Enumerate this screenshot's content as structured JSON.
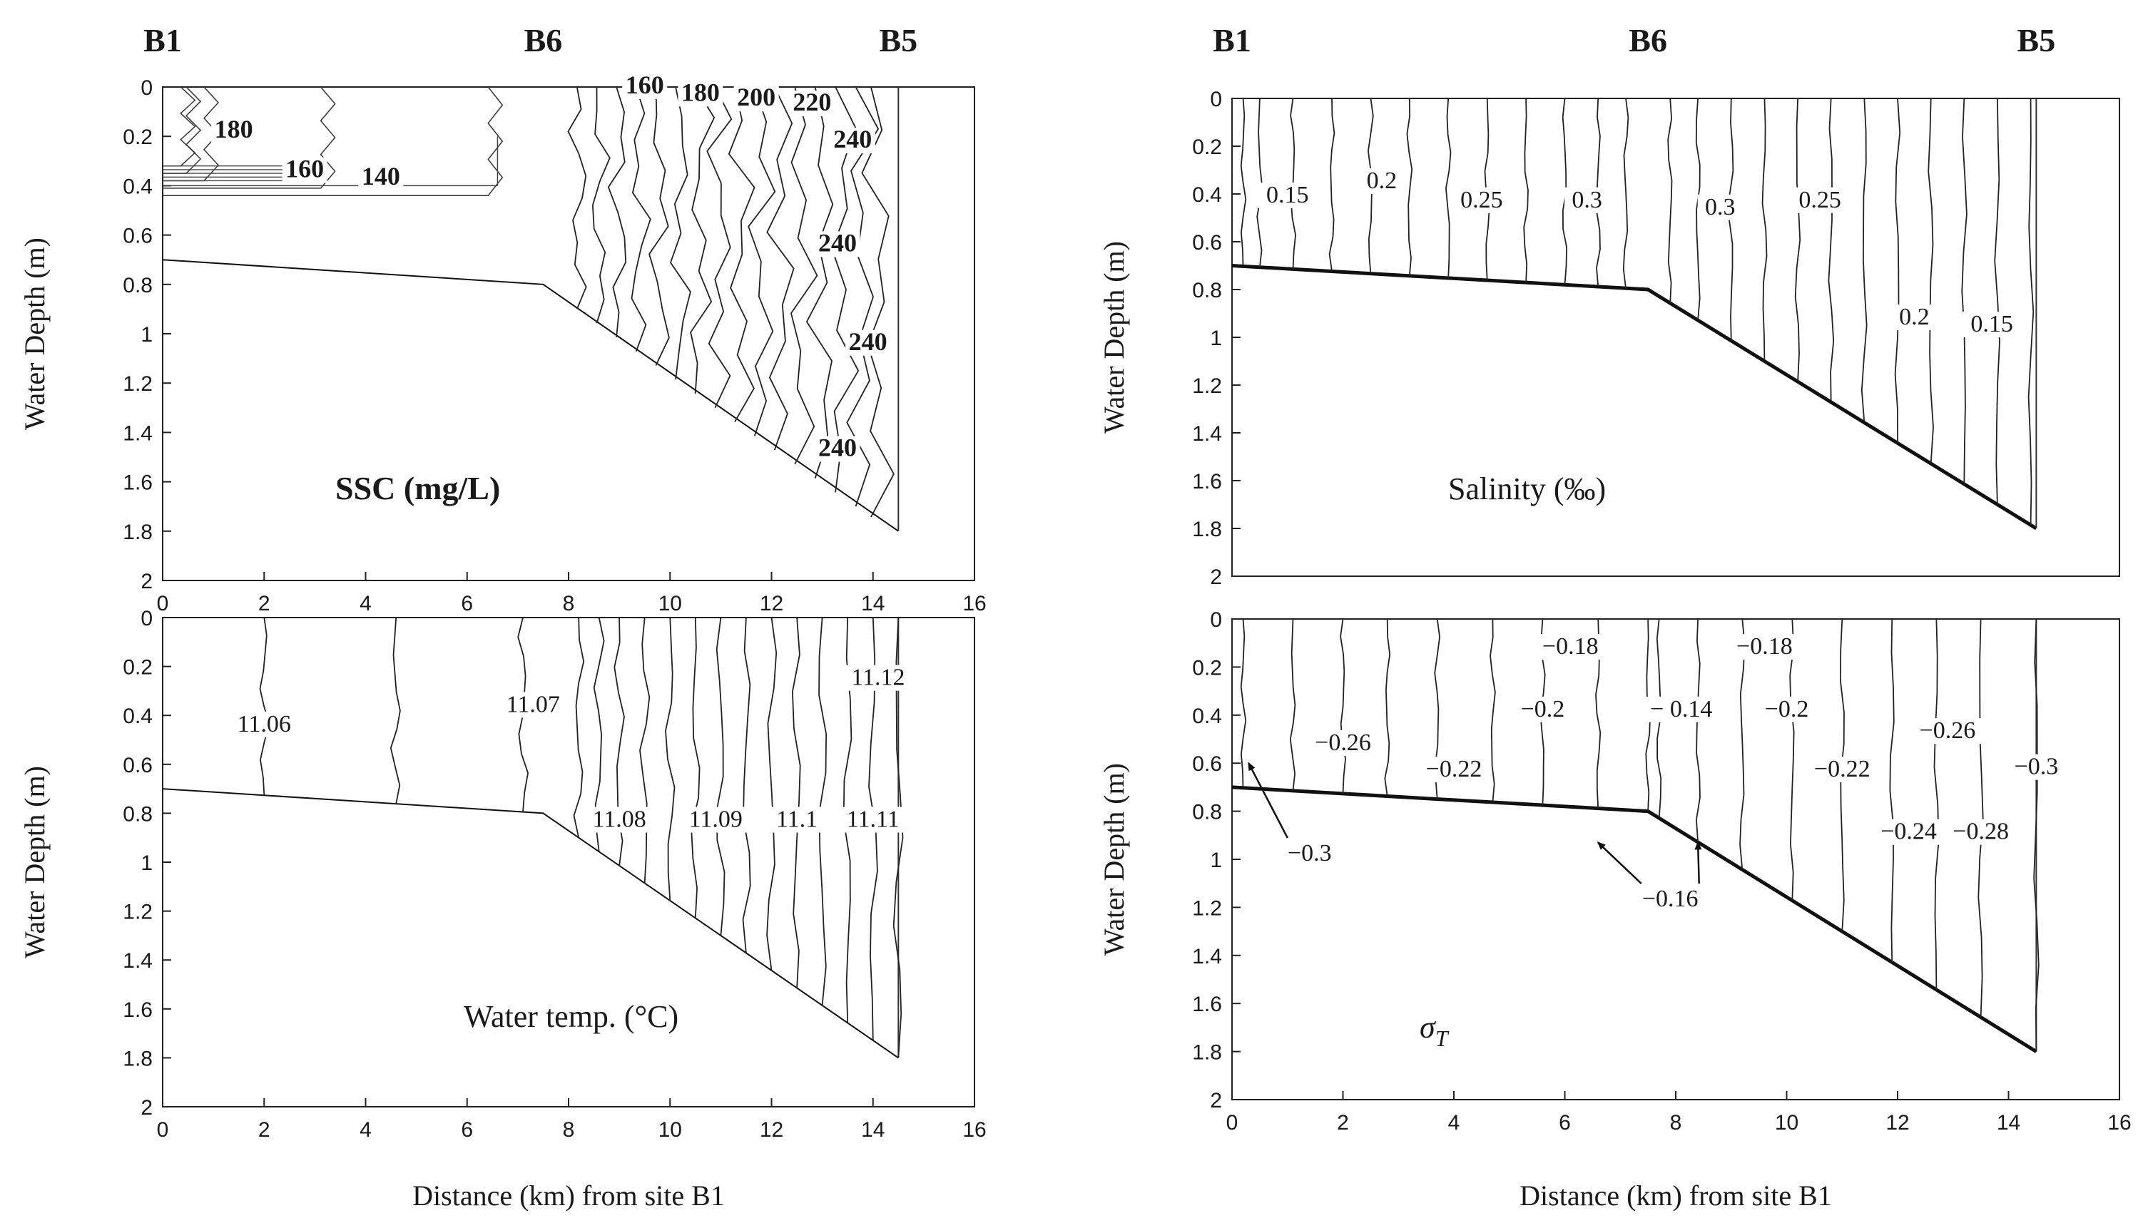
{
  "chart_data": [
    {
      "id": "ssc",
      "type": "contour",
      "panel_label": "SSC (mg/L)",
      "stations": [
        {
          "name": "B1",
          "x_km": 0
        },
        {
          "name": "B6",
          "x_km": 7.5
        },
        {
          "name": "B5",
          "x_km": 14.5
        }
      ],
      "xlabel": "",
      "ylabel": "Water Depth (m)",
      "xlim": [
        0,
        16
      ],
      "ylim": [
        0,
        2
      ],
      "y_inverted": true,
      "x_ticks": [
        "0",
        "2",
        "4",
        "6",
        "8",
        "10",
        "12",
        "14",
        "16"
      ],
      "y_ticks": [
        "0",
        "0.2",
        "0.4",
        "0.6",
        "0.8",
        "1",
        "1.2",
        "1.4",
        "1.6",
        "1.8",
        "2"
      ],
      "bed_profile": [
        [
          0,
          0.7
        ],
        [
          7.5,
          0.8
        ],
        [
          14.5,
          1.8
        ]
      ],
      "contour_x_km": [
        0.3,
        0.55,
        0.9,
        3.2,
        6.5,
        8.2,
        8.6,
        9.0,
        9.4,
        9.8,
        10.2,
        10.6,
        11.0,
        11.4,
        11.8,
        12.2,
        12.6,
        13.0,
        13.4,
        13.8,
        14.1
      ],
      "contour_labels": [
        {
          "text": "180",
          "x_km": 1.4,
          "depth_m": 0.2,
          "style": "bold"
        },
        {
          "text": "160",
          "x_km": 2.8,
          "depth_m": 0.36,
          "style": "bold"
        },
        {
          "text": "140",
          "x_km": 4.3,
          "depth_m": 0.39,
          "style": "bold"
        },
        {
          "text": "160",
          "x_km": 9.5,
          "depth_m": 0.02,
          "style": "bold"
        },
        {
          "text": "180",
          "x_km": 10.6,
          "depth_m": 0.05,
          "style": "bold"
        },
        {
          "text": "200",
          "x_km": 11.7,
          "depth_m": 0.07,
          "style": "bold"
        },
        {
          "text": "220",
          "x_km": 12.8,
          "depth_m": 0.09,
          "style": "bold"
        },
        {
          "text": "240",
          "x_km": 13.6,
          "depth_m": 0.24,
          "style": "bold"
        },
        {
          "text": "240",
          "x_km": 13.3,
          "depth_m": 0.66,
          "style": "bold"
        },
        {
          "text": "240",
          "x_km": 13.9,
          "depth_m": 1.06,
          "style": "bold"
        },
        {
          "text": "240",
          "x_km": 13.3,
          "depth_m": 1.49,
          "style": "bold"
        }
      ]
    },
    {
      "id": "salinity",
      "type": "contour",
      "panel_label": "Salinity (‰)",
      "stations": [
        {
          "name": "B1",
          "x_km": 0
        },
        {
          "name": "B6",
          "x_km": 7.5
        },
        {
          "name": "B5",
          "x_km": 14.5
        }
      ],
      "xlabel": "",
      "ylabel": "Water Depth (m)",
      "xlim": [
        0,
        16
      ],
      "ylim": [
        0,
        2
      ],
      "y_inverted": true,
      "x_ticks": [],
      "y_ticks": [
        "0",
        "0.2",
        "0.4",
        "0.6",
        "0.8",
        "1",
        "1.2",
        "1.4",
        "1.6",
        "1.8",
        "2"
      ],
      "bed_profile": [
        [
          0,
          0.7
        ],
        [
          7.5,
          0.8
        ],
        [
          14.5,
          1.8
        ]
      ],
      "contour_x_km": [
        0.2,
        0.5,
        1.1,
        1.8,
        2.5,
        3.2,
        3.9,
        4.6,
        5.3,
        6.0,
        6.6,
        7.1,
        7.9,
        8.4,
        9.0,
        9.6,
        10.2,
        10.8,
        11.4,
        12.0,
        12.6,
        13.2,
        13.8,
        14.4
      ],
      "contour_labels": [
        {
          "text": "0.15",
          "x_km": 1.0,
          "depth_m": 0.43,
          "style": "normal"
        },
        {
          "text": "0.2",
          "x_km": 2.7,
          "depth_m": 0.37,
          "style": "normal"
        },
        {
          "text": "0.25",
          "x_km": 4.5,
          "depth_m": 0.45,
          "style": "normal"
        },
        {
          "text": "0.3",
          "x_km": 6.4,
          "depth_m": 0.45,
          "style": "normal"
        },
        {
          "text": "0.3",
          "x_km": 8.8,
          "depth_m": 0.48,
          "style": "normal"
        },
        {
          "text": "0.25",
          "x_km": 10.6,
          "depth_m": 0.45,
          "style": "normal"
        },
        {
          "text": "0.2",
          "x_km": 12.3,
          "depth_m": 0.94,
          "style": "normal"
        },
        {
          "text": "0.15",
          "x_km": 13.7,
          "depth_m": 0.97,
          "style": "normal"
        }
      ]
    },
    {
      "id": "temperature",
      "type": "contour",
      "panel_label": "Water temp. (°C)",
      "xlabel": "Distance (km) from site B1",
      "ylabel": "Water Depth (m)",
      "xlim": [
        0,
        16
      ],
      "ylim": [
        0,
        2
      ],
      "y_inverted": true,
      "x_ticks": [
        "0",
        "2",
        "4",
        "6",
        "8",
        "10",
        "12",
        "14",
        "16"
      ],
      "y_ticks": [
        "0",
        "0.2",
        "0.4",
        "0.6",
        "0.8",
        "1",
        "1.2",
        "1.4",
        "1.6",
        "1.8",
        "2"
      ],
      "bed_profile": [
        [
          0,
          0.7
        ],
        [
          7.5,
          0.8
        ],
        [
          14.5,
          1.8
        ]
      ],
      "contour_x_km": [
        2.0,
        4.6,
        7.1,
        8.2,
        8.6,
        9.0,
        9.5,
        10.0,
        10.5,
        11.0,
        11.5,
        12.0,
        12.5,
        13.0,
        13.5,
        14.0,
        14.5
      ],
      "contour_labels": [
        {
          "text": "11.06",
          "x_km": 2.0,
          "depth_m": 0.46,
          "style": "normal"
        },
        {
          "text": "11.07",
          "x_km": 7.3,
          "depth_m": 0.38,
          "style": "normal"
        },
        {
          "text": "11.08",
          "x_km": 9.0,
          "depth_m": 0.85,
          "style": "normal"
        },
        {
          "text": "11.09",
          "x_km": 10.9,
          "depth_m": 0.85,
          "style": "normal"
        },
        {
          "text": "11.1",
          "x_km": 12.5,
          "depth_m": 0.85,
          "style": "normal"
        },
        {
          "text": "11.11",
          "x_km": 14.0,
          "depth_m": 0.85,
          "style": "normal"
        },
        {
          "text": "11.12",
          "x_km": 14.1,
          "depth_m": 0.27,
          "style": "normal"
        }
      ]
    },
    {
      "id": "sigma_t",
      "type": "contour",
      "panel_label": "σ",
      "panel_label_subscript": "T",
      "xlabel": "Distance (km) from site B1",
      "ylabel": "Water Depth (m)",
      "xlim": [
        0,
        16
      ],
      "ylim": [
        0,
        2
      ],
      "y_inverted": true,
      "x_ticks": [
        "0",
        "2",
        "4",
        "6",
        "8",
        "10",
        "12",
        "14",
        "16"
      ],
      "y_ticks": [
        "0",
        "0.2",
        "0.4",
        "0.6",
        "0.8",
        "1",
        "1.2",
        "1.4",
        "1.6",
        "1.8",
        "2"
      ],
      "bed_profile": [
        [
          0,
          0.7
        ],
        [
          7.5,
          0.8
        ],
        [
          14.5,
          1.8
        ]
      ],
      "contour_x_km": [
        0.2,
        1.1,
        2.0,
        2.8,
        3.7,
        4.7,
        5.6,
        6.6,
        7.5,
        7.7,
        8.4,
        9.2,
        10.1,
        11.0,
        11.9,
        12.7,
        13.5,
        14.5
      ],
      "contour_labels": [
        {
          "text": "−0.26",
          "x_km": 2.0,
          "depth_m": 0.54,
          "style": "normal"
        },
        {
          "text": "−0.22",
          "x_km": 4.0,
          "depth_m": 0.65,
          "style": "normal"
        },
        {
          "text": "−0.18",
          "x_km": 6.1,
          "depth_m": 0.14,
          "style": "normal"
        },
        {
          "text": "−0.2",
          "x_km": 5.6,
          "depth_m": 0.4,
          "style": "normal"
        },
        {
          "text": "− 0.14",
          "x_km": 8.1,
          "depth_m": 0.4,
          "style": "normal"
        },
        {
          "text": "−0.18",
          "x_km": 9.6,
          "depth_m": 0.14,
          "style": "normal"
        },
        {
          "text": "−0.2",
          "x_km": 10.0,
          "depth_m": 0.4,
          "style": "normal"
        },
        {
          "text": "−0.22",
          "x_km": 11.0,
          "depth_m": 0.65,
          "style": "normal"
        },
        {
          "text": "−0.26",
          "x_km": 12.9,
          "depth_m": 0.49,
          "style": "normal"
        },
        {
          "text": "−0.3",
          "x_km": 14.5,
          "depth_m": 0.64,
          "style": "normal"
        },
        {
          "text": "−0.24",
          "x_km": 12.2,
          "depth_m": 0.91,
          "style": "normal"
        },
        {
          "text": "−0.28",
          "x_km": 13.5,
          "depth_m": 0.91,
          "style": "normal"
        }
      ],
      "arrow_labels": [
        {
          "text": "−0.3",
          "x_km": 1.4,
          "depth_m": 1.0,
          "targets": [
            [
              0.3,
              0.6
            ]
          ]
        },
        {
          "text": "−0.16",
          "x_km": 7.9,
          "depth_m": 1.19,
          "targets": [
            [
              6.6,
              0.93
            ],
            [
              8.4,
              0.93
            ]
          ]
        }
      ]
    }
  ]
}
